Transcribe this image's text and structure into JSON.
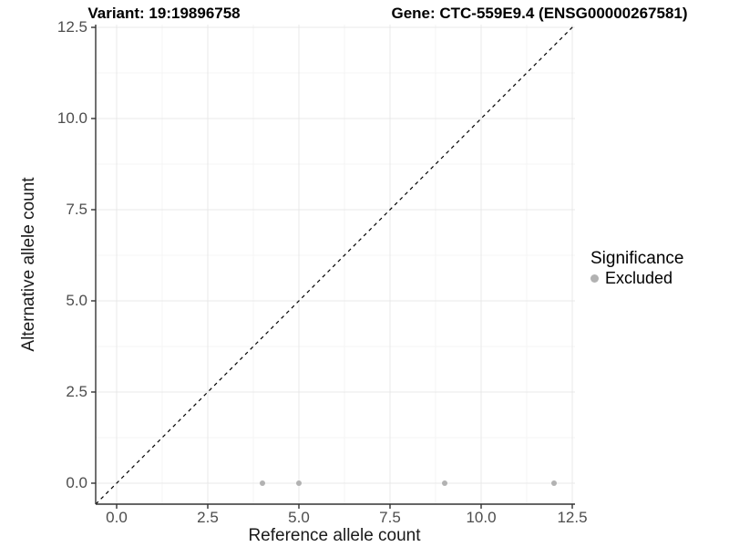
{
  "header": {
    "variant_title": "Variant: 19:19896758",
    "gene_title": "Gene: CTC-559E9.4 (ENSG00000267581)"
  },
  "legend": {
    "title": "Significance",
    "items": [
      {
        "label": "Excluded",
        "color": "#b2b2b2"
      }
    ],
    "position": "right"
  },
  "colors": {
    "background": "#ffffff",
    "axis_line": "#333333",
    "tick_mark": "#333333",
    "tick_label": "#4d4d4d",
    "grid_major": "#e8e8e8",
    "grid_minor": "#f4f4f4",
    "point": "#b2b2b2",
    "reference_line": "#000000",
    "title_text": "#000000"
  },
  "chart_data": {
    "type": "scatter",
    "title": "Variant: 19:19896758   Gene: CTC-559E9.4 (ENSG00000267581)",
    "xlabel": "Reference allele count",
    "ylabel": "Alternative allele count",
    "xlim": [
      -0.575,
      12.575
    ],
    "ylim": [
      -0.575,
      12.575
    ],
    "x_ticks": [
      0,
      2.5,
      5,
      7.5,
      10,
      12.5
    ],
    "x_tick_labels": [
      "0.0",
      "2.5",
      "5.0",
      "7.5",
      "10.0",
      "12.5"
    ],
    "y_ticks": [
      0,
      2.5,
      5,
      7.5,
      10,
      12.5
    ],
    "y_tick_labels": [
      "0.0",
      "2.5",
      "5.0",
      "7.5",
      "10.0",
      "12.5"
    ],
    "grid": true,
    "legend_position": "right",
    "series": [
      {
        "name": "Excluded",
        "color": "#b2b2b2",
        "points": [
          [
            4,
            0
          ],
          [
            5,
            0
          ],
          [
            9,
            0
          ],
          [
            12,
            0
          ]
        ]
      }
    ],
    "reference_line": {
      "slope": 1,
      "intercept": 0,
      "style": "dashed",
      "color": "#000000"
    }
  }
}
